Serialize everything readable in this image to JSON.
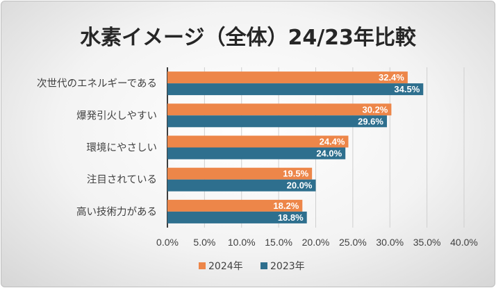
{
  "chart_data": {
    "type": "bar",
    "orientation": "horizontal",
    "title": "水素イメージ（全体）24/23年比較",
    "categories": [
      "次世代のエネルギーである",
      "爆発引火しやすい",
      "環境にやさしい",
      "注目されている",
      "高い技術力がある"
    ],
    "series": [
      {
        "name": "2024年",
        "color": "#ed8649",
        "values": [
          32.4,
          30.2,
          24.4,
          19.5,
          18.2
        ],
        "labels": [
          "32.4%",
          "30.2%",
          "24.4%",
          "19.5%",
          "18.2%"
        ]
      },
      {
        "name": "2023年",
        "color": "#2e6f8e",
        "values": [
          34.5,
          29.6,
          24.0,
          20.0,
          18.8
        ],
        "labels": [
          "34.5%",
          "29.6%",
          "24.0%",
          "20.0%",
          "18.8%"
        ]
      }
    ],
    "xlim": [
      0,
      40
    ],
    "xticks": [
      "0.0%",
      "5.0%",
      "10.0%",
      "15.0%",
      "20.0%",
      "25.0%",
      "30.0%",
      "35.0%",
      "40.0%"
    ],
    "grid": true,
    "legend_position": "bottom",
    "xlabel": "",
    "ylabel": ""
  }
}
